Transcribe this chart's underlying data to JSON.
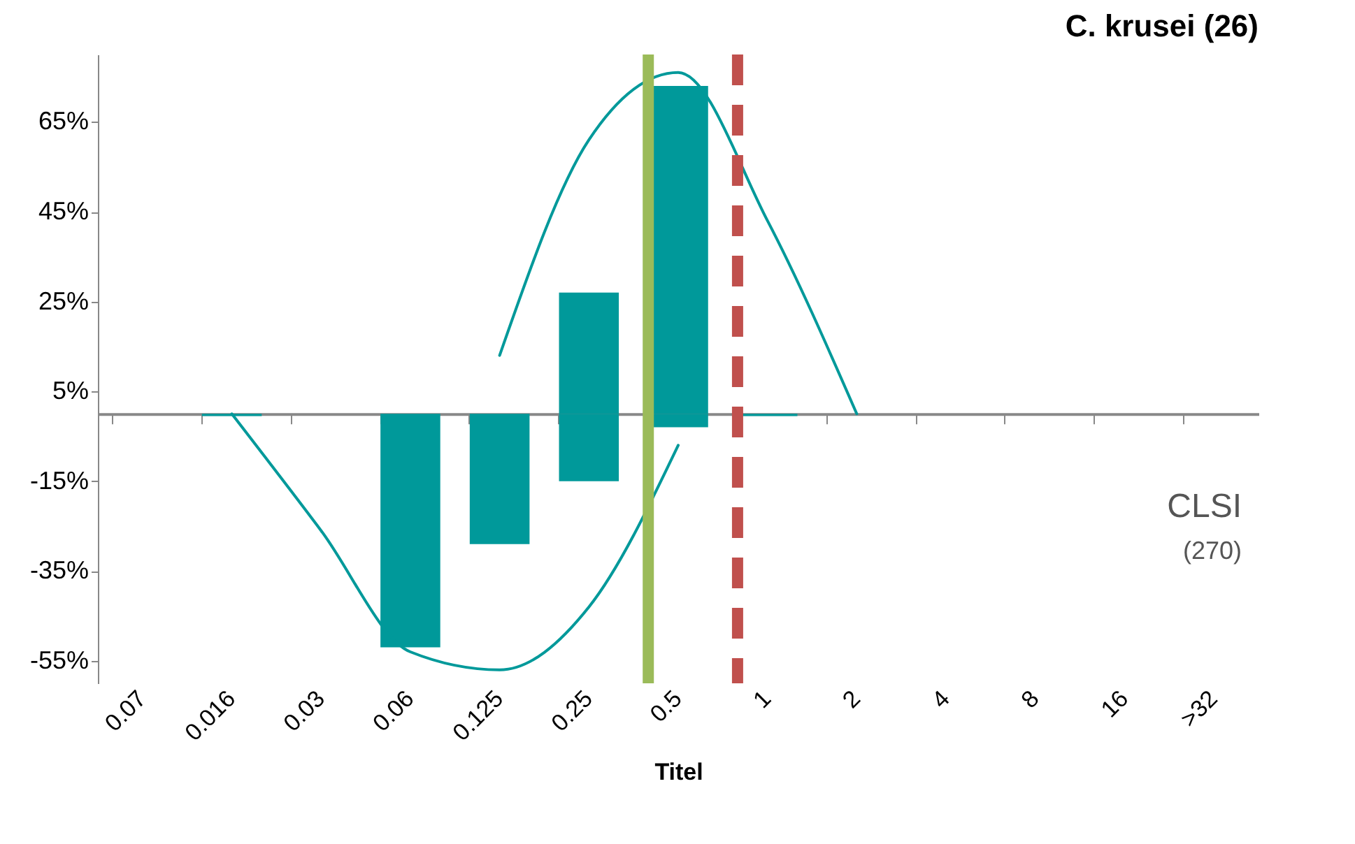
{
  "chart_data": {
    "type": "bar",
    "title": "C. krusei (26)",
    "xlabel": "Titel",
    "categories": [
      "0.07",
      "0.016",
      "0.03",
      "0.06",
      "0.125",
      "0.25",
      "0.5",
      "1",
      "2",
      "4",
      "8",
      "16",
      ">32"
    ],
    "series": [
      {
        "color": "#00999a",
        "values": [
          null,
          null,
          null,
          null,
          null,
          27,
          73,
          null,
          null,
          null,
          null,
          null,
          null
        ]
      },
      {
        "name": "CLSI",
        "color": "#00999a",
        "values": [
          null,
          -0.5,
          null,
          -52,
          -29,
          -15,
          -3,
          -0.5,
          null,
          null,
          null,
          null,
          null
        ]
      },
      {
        "type": "line",
        "color": "#00999a",
        "x": [
          "0.125",
          "0.25",
          "0.5",
          "1",
          "2"
        ],
        "values": [
          13,
          61,
          76,
          43,
          0
        ]
      },
      {
        "type": "line",
        "color": "#00999a",
        "x": [
          "0.016",
          "0.03",
          "0.06",
          "0.125",
          "0.25",
          "0.5"
        ],
        "values": [
          0,
          -26,
          -53,
          -57,
          -43,
          -7
        ]
      }
    ],
    "ylim": [
      -60,
      80
    ],
    "yticks": [
      {
        "value": -55,
        "label": "-55%"
      },
      {
        "value": -35,
        "label": "-35%"
      },
      {
        "value": -15,
        "label": "-15%"
      },
      {
        "value": 5,
        "label": "5%"
      },
      {
        "value": 25,
        "label": "25%"
      },
      {
        "value": 45,
        "label": "45%"
      },
      {
        "value": 65,
        "label": "65%"
      }
    ],
    "ref_lines": [
      {
        "axis": "x",
        "value": "0.5",
        "color": "#9bbb59",
        "line_style": "solid"
      },
      {
        "axis": "x",
        "value": "1",
        "color": "#c0504d",
        "line_style": "dashed"
      }
    ],
    "annotations": [
      "(270)"
    ],
    "legend": false
  }
}
